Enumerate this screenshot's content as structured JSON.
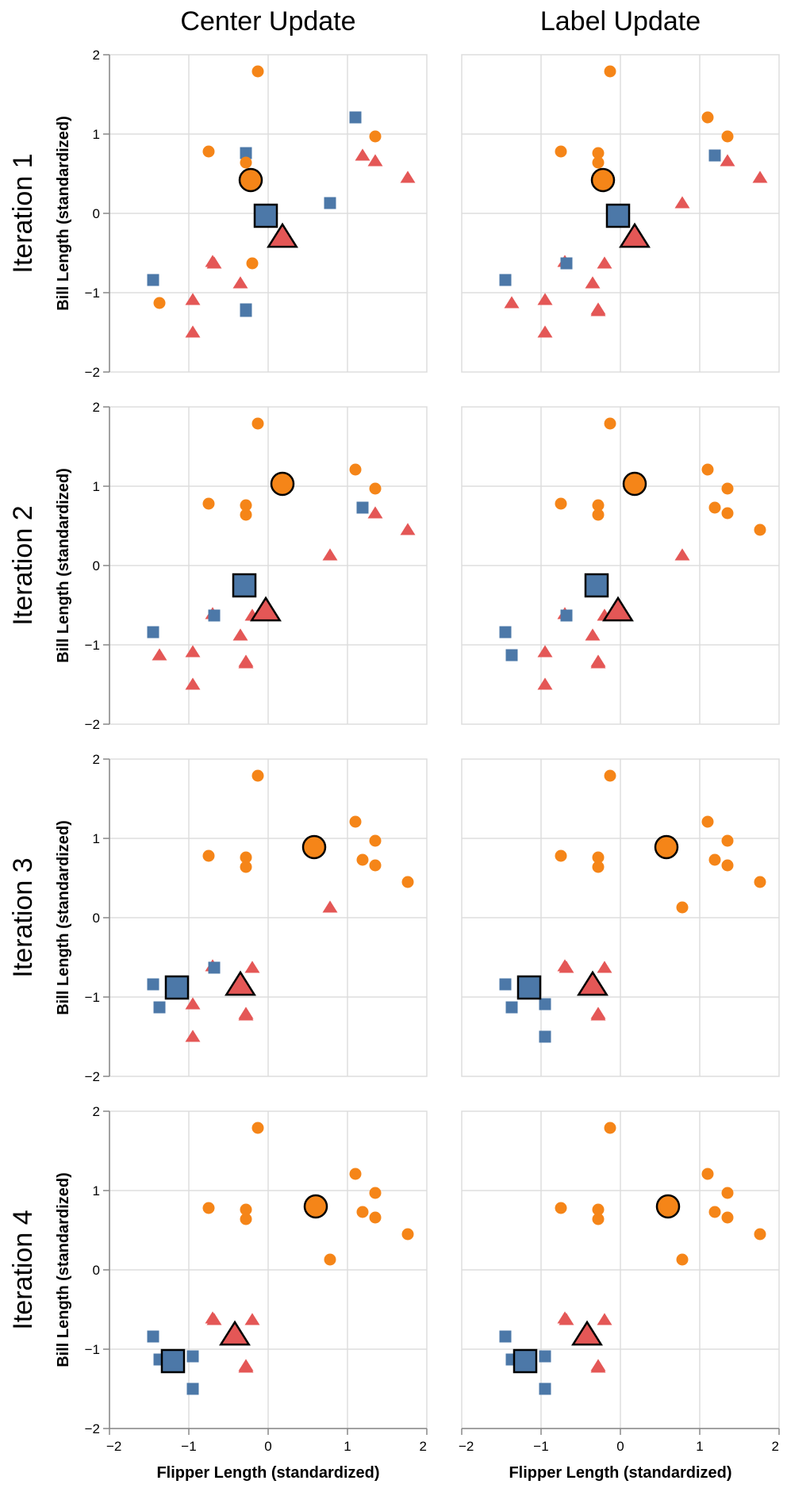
{
  "colors": {
    "c0": "#f58518",
    "c1": "#4c78a8",
    "c2": "#e45756"
  },
  "chart_data": {
    "type": "scatter",
    "column_titles": [
      "Center Update",
      "Label Update"
    ],
    "row_titles": [
      "Iteration 1",
      "Iteration 2",
      "Iteration 3",
      "Iteration 4"
    ],
    "xlabel": "Flipper Length (standardized)",
    "ylabel": "Bill Length (standardized)",
    "xlim": [
      -2,
      2
    ],
    "ylim": [
      -2,
      2
    ],
    "x_ticks": [
      "−2",
      "−1",
      "0",
      "1",
      "2"
    ],
    "y_ticks": [
      "2",
      "1",
      "0",
      "−1",
      "−2"
    ],
    "grid": true,
    "points": [
      [
        -0.13,
        1.79
      ],
      [
        -0.28,
        0.76
      ],
      [
        -0.75,
        0.78
      ],
      [
        -0.28,
        0.64
      ],
      [
        1.35,
        0.97
      ],
      [
        1.1,
        1.21
      ],
      [
        1.19,
        0.73
      ],
      [
        1.35,
        0.66
      ],
      [
        1.76,
        0.45
      ],
      [
        0.78,
        0.13
      ],
      [
        -0.2,
        -0.63
      ],
      [
        -0.35,
        -0.88
      ],
      [
        -0.7,
        -0.61
      ],
      [
        -0.28,
        -1.21
      ],
      [
        -0.95,
        -1.09
      ],
      [
        -1.37,
        -1.13
      ],
      [
        -0.95,
        -1.5
      ],
      [
        -1.45,
        -0.84
      ],
      [
        -0.68,
        -0.63
      ],
      [
        -0.28,
        -1.23
      ]
    ],
    "panels": [
      {
        "row": 0,
        "col": 0,
        "labels": [
          0,
          1,
          0,
          0,
          0,
          1,
          2,
          2,
          2,
          1,
          0,
          2,
          2,
          1,
          2,
          0,
          2,
          1,
          2,
          1
        ],
        "centers": [
          [
            -0.22,
            0.42
          ],
          [
            -0.03,
            -0.03
          ],
          [
            0.18,
            -0.3
          ]
        ]
      },
      {
        "row": 0,
        "col": 1,
        "labels": [
          0,
          0,
          0,
          0,
          0,
          0,
          1,
          2,
          2,
          2,
          2,
          2,
          2,
          2,
          2,
          2,
          2,
          1,
          1,
          2
        ],
        "centers": [
          [
            -0.22,
            0.42
          ],
          [
            -0.03,
            -0.03
          ],
          [
            0.18,
            -0.3
          ]
        ]
      },
      {
        "row": 1,
        "col": 0,
        "labels": [
          0,
          0,
          0,
          0,
          0,
          0,
          1,
          2,
          2,
          2,
          2,
          2,
          2,
          2,
          2,
          2,
          2,
          1,
          1,
          2
        ],
        "centers": [
          [
            0.18,
            1.03
          ],
          [
            -0.3,
            -0.25
          ],
          [
            -0.03,
            -0.57
          ]
        ]
      },
      {
        "row": 1,
        "col": 1,
        "labels": [
          0,
          0,
          0,
          0,
          0,
          0,
          0,
          0,
          0,
          2,
          2,
          2,
          2,
          2,
          2,
          1,
          2,
          1,
          1,
          2
        ],
        "centers": [
          [
            0.18,
            1.03
          ],
          [
            -0.3,
            -0.25
          ],
          [
            -0.03,
            -0.57
          ]
        ]
      },
      {
        "row": 2,
        "col": 0,
        "labels": [
          0,
          0,
          0,
          0,
          0,
          0,
          0,
          0,
          0,
          2,
          2,
          2,
          2,
          2,
          2,
          1,
          2,
          1,
          1,
          2
        ],
        "centers": [
          [
            0.58,
            0.89
          ],
          [
            -1.15,
            -0.88
          ],
          [
            -0.35,
            -0.85
          ]
        ]
      },
      {
        "row": 2,
        "col": 1,
        "labels": [
          0,
          0,
          0,
          0,
          0,
          0,
          0,
          0,
          0,
          0,
          2,
          2,
          2,
          2,
          1,
          1,
          1,
          1,
          2,
          2
        ],
        "centers": [
          [
            0.58,
            0.89
          ],
          [
            -1.15,
            -0.88
          ],
          [
            -0.35,
            -0.85
          ]
        ]
      },
      {
        "row": 3,
        "col": 0,
        "labels": [
          0,
          0,
          0,
          0,
          0,
          0,
          0,
          0,
          0,
          0,
          2,
          2,
          2,
          2,
          1,
          1,
          1,
          1,
          2,
          2
        ],
        "centers": [
          [
            0.6,
            0.8
          ],
          [
            -1.2,
            -1.15
          ],
          [
            -0.42,
            -0.82
          ]
        ]
      },
      {
        "row": 3,
        "col": 1,
        "labels": [
          0,
          0,
          0,
          0,
          0,
          0,
          0,
          0,
          0,
          0,
          2,
          2,
          2,
          2,
          1,
          1,
          1,
          1,
          2,
          2
        ],
        "centers": [
          [
            0.6,
            0.8
          ],
          [
            -1.2,
            -1.15
          ],
          [
            -0.42,
            -0.82
          ]
        ]
      }
    ]
  }
}
